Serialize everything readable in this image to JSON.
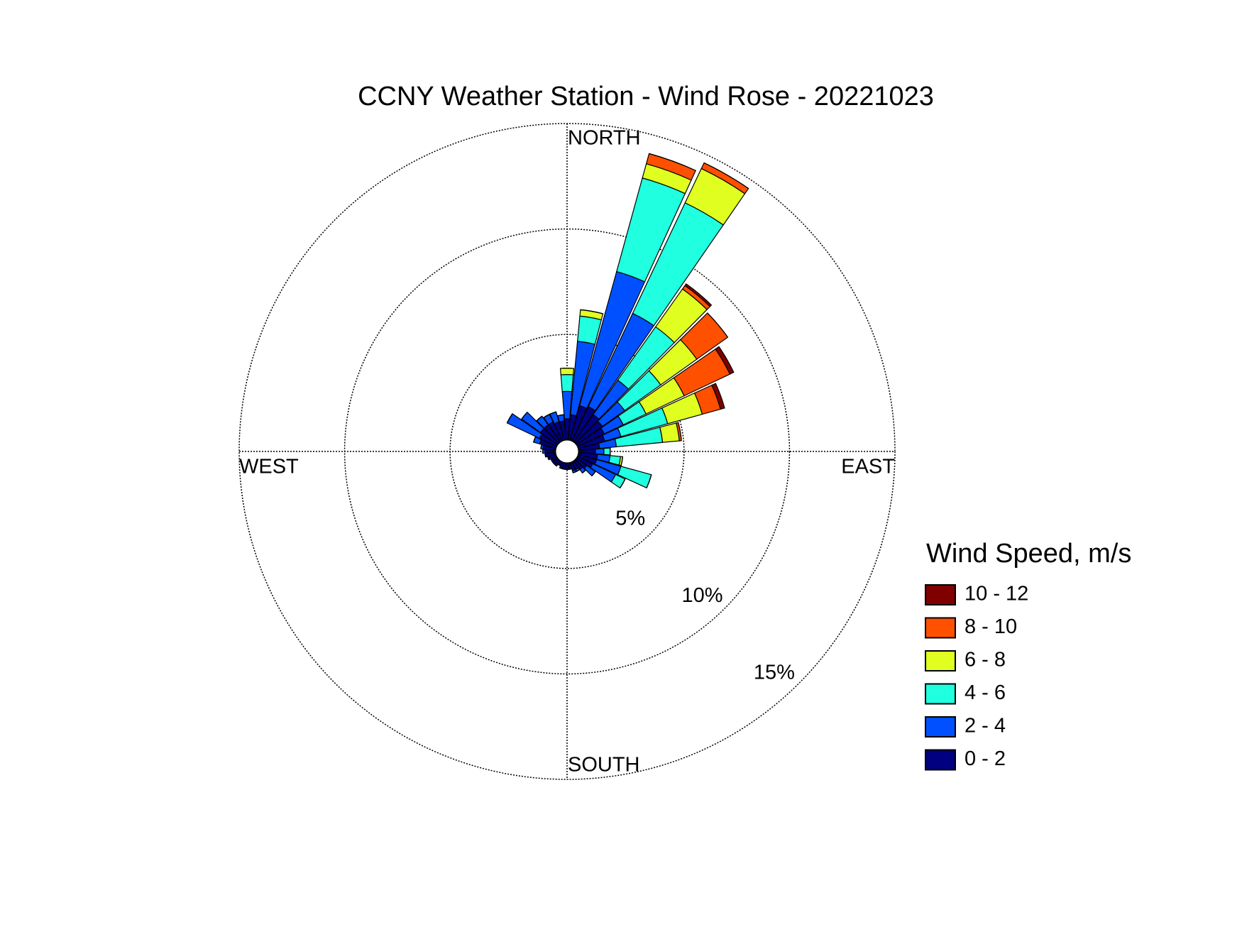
{
  "chart_data": {
    "type": "windrose",
    "title": "CCNY Weather Station - Wind Rose - 20221023",
    "direction_labels": {
      "north": "NORTH",
      "east": "EAST",
      "south": "SOUTH",
      "west": "WEST"
    },
    "legend_title": "Wind Speed, m/s",
    "x": [
      0,
      10,
      20,
      30,
      40,
      50,
      60,
      70,
      80,
      90,
      100,
      110,
      120,
      130,
      140,
      150,
      160,
      170,
      180,
      190,
      200,
      210,
      220,
      230,
      240,
      250,
      260,
      270,
      280,
      290,
      300,
      310,
      320,
      330,
      340,
      350
    ],
    "rlim": [
      0,
      15
    ],
    "rticks": [
      {
        "value": 5,
        "label": "5%"
      },
      {
        "value": 10,
        "label": "10%"
      },
      {
        "value": 15,
        "label": "15%"
      }
    ],
    "grid": true,
    "series": [
      {
        "name": "0 - 2",
        "color": "#000080",
        "values": [
          1.0,
          1.2,
          1.7,
          1.8,
          1.6,
          1.5,
          1.4,
          1.3,
          1.0,
          0.8,
          0.9,
          0.9,
          0.8,
          0.6,
          0.5,
          0.4,
          0.4,
          0.3,
          0.3,
          0.3,
          0.3,
          0.2,
          0.3,
          0.3,
          0.3,
          0.4,
          0.5,
          0.5,
          0.6,
          0.8,
          0.9,
          1.0,
          1.0,
          1.0,
          0.9,
          0.9
        ]
      },
      {
        "name": "2 - 4",
        "color": "#0050ff",
        "values": [
          1.3,
          3.5,
          6.6,
          4.9,
          2.0,
          1.3,
          1.0,
          0.8,
          0.8,
          0.4,
          0.6,
          1.2,
          1.2,
          0.5,
          0.2,
          0.1,
          0.1,
          0,
          0,
          0,
          0,
          0,
          0,
          0,
          0,
          0,
          0,
          0.1,
          0.1,
          0.3,
          1.7,
          1.1,
          0.5,
          0.4,
          0.5,
          0.3
        ]
      },
      {
        "name": "4 - 6",
        "color": "#20ffe0",
        "values": [
          0.8,
          1.2,
          4.6,
          5.8,
          3.1,
          2.1,
          1.2,
          2.3,
          2.2,
          0.3,
          0.5,
          1.5,
          0.5,
          0,
          0,
          0,
          0,
          0,
          0,
          0,
          0,
          0,
          0,
          0,
          0,
          0,
          0,
          0,
          0,
          0,
          0,
          0,
          0,
          0,
          0,
          0
        ]
      },
      {
        "name": "6 - 8",
        "color": "#e0ff20",
        "values": [
          0.3,
          0.3,
          0.7,
          1.8,
          2.2,
          2.1,
          2.0,
          1.7,
          0.8,
          0,
          0.1,
          0,
          0,
          0,
          0,
          0,
          0,
          0,
          0,
          0,
          0,
          0,
          0,
          0,
          0,
          0,
          0,
          0,
          0,
          0,
          0,
          0,
          0,
          0,
          0,
          0
        ]
      },
      {
        "name": "8 - 10",
        "color": "#ff5000",
        "values": [
          0,
          0,
          0.5,
          0.3,
          0.2,
          1.8,
          2.4,
          0.9,
          0.1,
          0,
          0,
          0,
          0,
          0,
          0,
          0,
          0,
          0,
          0,
          0,
          0,
          0,
          0,
          0,
          0,
          0,
          0,
          0,
          0,
          0,
          0,
          0,
          0,
          0,
          0,
          0
        ]
      },
      {
        "name": "10 - 12",
        "color": "#800000",
        "values": [
          0,
          0,
          0,
          0,
          0.1,
          0,
          0.2,
          0.2,
          0,
          0,
          0,
          0,
          0,
          0,
          0,
          0,
          0,
          0,
          0,
          0,
          0,
          0,
          0,
          0,
          0,
          0,
          0,
          0,
          0,
          0,
          0,
          0,
          0,
          0,
          0,
          0
        ]
      }
    ]
  }
}
